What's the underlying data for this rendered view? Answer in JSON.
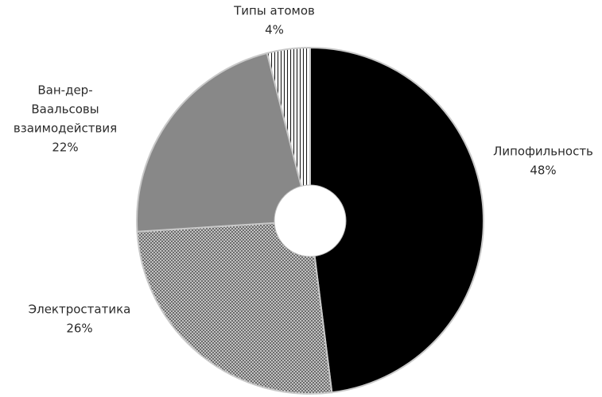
{
  "chart_data": {
    "type": "pie",
    "title": "",
    "slices": [
      {
        "label_lines": [
          "Липофильность"
        ],
        "value": 48,
        "value_label": "48%",
        "color": "#000000",
        "pattern": "solid"
      },
      {
        "label_lines": [
          "Электростатика"
        ],
        "value": 26,
        "value_label": "26%",
        "color": "#dcdcdc",
        "pattern": "crosshatch"
      },
      {
        "label_lines": [
          "Ван-дер-",
          "Ваальсовы",
          "взаимодействия"
        ],
        "value": 22,
        "value_label": "22%",
        "color": "#888888",
        "pattern": "solid"
      },
      {
        "label_lines": [
          "Типы атомов"
        ],
        "value": 4,
        "value_label": "4%",
        "color": "#ffffff",
        "pattern": "vertical-lines"
      }
    ],
    "legend": "none",
    "donut": true
  }
}
